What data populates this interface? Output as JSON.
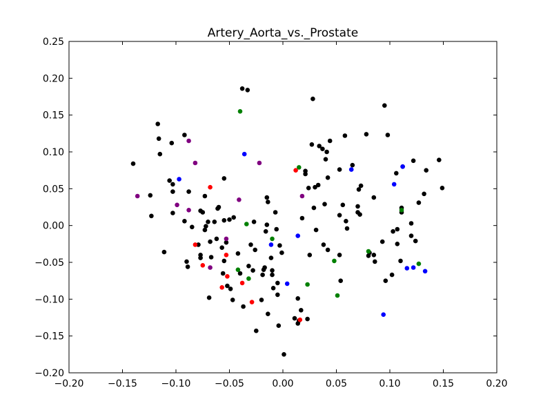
{
  "chart_data": {
    "type": "scatter",
    "title": "Artery_Aorta_vs._Prostate",
    "xlabel": "",
    "ylabel": "",
    "xlim": [
      -0.2,
      0.2
    ],
    "ylim": [
      -0.2,
      0.25
    ],
    "x_ticks": [
      -0.2,
      -0.15,
      -0.1,
      -0.05,
      0.0,
      0.05,
      0.1,
      0.15,
      0.2
    ],
    "y_ticks": [
      -0.2,
      -0.15,
      -0.1,
      -0.05,
      0.0,
      0.05,
      0.1,
      0.15,
      0.2,
      0.25
    ],
    "x_tick_labels": [
      "−0.20",
      "−0.15",
      "−0.10",
      "−0.05",
      "0.00",
      "0.05",
      "0.10",
      "0.15",
      "0.20"
    ],
    "y_tick_labels": [
      "−0.20",
      "−0.15",
      "−0.10",
      "−0.05",
      "0.00",
      "0.05",
      "0.10",
      "0.15",
      "0.20",
      "0.25"
    ],
    "grid": false,
    "legend": "none",
    "series": [
      {
        "color": "#000000",
        "points": [
          [
            -0.14,
            0.084
          ],
          [
            -0.124,
            0.041
          ],
          [
            -0.123,
            0.013
          ],
          [
            -0.117,
            0.138
          ],
          [
            -0.116,
            0.118
          ],
          [
            -0.115,
            0.097
          ],
          [
            -0.111,
            -0.036
          ],
          [
            -0.106,
            0.061
          ],
          [
            -0.104,
            0.112
          ],
          [
            -0.103,
            0.056
          ],
          [
            -0.103,
            0.046
          ],
          [
            -0.103,
            0.017
          ],
          [
            -0.092,
            0.123
          ],
          [
            -0.092,
            0.006
          ],
          [
            -0.09,
            -0.049
          ],
          [
            -0.089,
            -0.056
          ],
          [
            -0.088,
            0.046
          ],
          [
            -0.085,
            -0.002
          ],
          [
            -0.079,
            -0.026
          ],
          [
            -0.077,
            -0.04
          ],
          [
            -0.077,
            -0.044
          ],
          [
            -0.077,
            0.02
          ],
          [
            -0.075,
            0.018
          ],
          [
            -0.073,
            -0.006
          ],
          [
            -0.073,
            0.04
          ],
          [
            -0.072,
            -0.001
          ],
          [
            -0.07,
            0.005
          ],
          [
            -0.069,
            -0.098
          ],
          [
            -0.068,
            -0.022
          ],
          [
            -0.067,
            -0.043
          ],
          [
            -0.064,
            0.005
          ],
          [
            -0.062,
            -0.018
          ],
          [
            -0.061,
            0.023
          ],
          [
            -0.06,
            0.025
          ],
          [
            -0.057,
            -0.03
          ],
          [
            -0.056,
            -0.065
          ],
          [
            -0.055,
            0.007
          ],
          [
            -0.055,
            0.064
          ],
          [
            -0.055,
            -0.048
          ],
          [
            -0.053,
            -0.023
          ],
          [
            -0.052,
            -0.082
          ],
          [
            -0.05,
            0.008
          ],
          [
            -0.049,
            -0.086
          ],
          [
            -0.047,
            -0.101
          ],
          [
            -0.046,
            0.011
          ],
          [
            -0.042,
            -0.038
          ],
          [
            -0.04,
            -0.065
          ],
          [
            -0.038,
            0.186
          ],
          [
            -0.037,
            -0.11
          ],
          [
            -0.033,
            0.184
          ],
          [
            -0.032,
            -0.055
          ],
          [
            -0.03,
            -0.026
          ],
          [
            -0.028,
            -0.061
          ],
          [
            -0.027,
            0.005
          ],
          [
            -0.026,
            -0.033
          ],
          [
            -0.025,
            -0.143
          ],
          [
            -0.02,
            -0.101
          ],
          [
            -0.019,
            -0.067
          ],
          [
            -0.018,
            -0.06
          ],
          [
            -0.017,
            -0.057
          ],
          [
            -0.016,
            -0.008
          ],
          [
            -0.015,
            0.001
          ],
          [
            -0.015,
            0.038
          ],
          [
            -0.014,
            -0.12
          ],
          [
            -0.014,
            0.032
          ],
          [
            -0.011,
            -0.044
          ],
          [
            -0.01,
            -0.067
          ],
          [
            -0.01,
            -0.061
          ],
          [
            -0.009,
            -0.085
          ],
          [
            -0.007,
            0.018
          ],
          [
            -0.006,
            -0.005
          ],
          [
            -0.005,
            -0.078
          ],
          [
            -0.005,
            -0.094
          ],
          [
            -0.004,
            -0.136
          ],
          [
            -0.003,
            -0.027
          ],
          [
            -0.001,
            -0.037
          ],
          [
            0.001,
            -0.175
          ],
          [
            0.011,
            -0.126
          ],
          [
            0.014,
            -0.099
          ],
          [
            0.014,
            -0.133
          ],
          [
            0.015,
            -0.129
          ],
          [
            0.017,
            -0.115
          ],
          [
            0.018,
            0.01
          ],
          [
            0.021,
            0.07
          ],
          [
            0.021,
            0.074
          ],
          [
            0.023,
            -0.127
          ],
          [
            0.024,
            0.051
          ],
          [
            0.025,
            -0.04
          ],
          [
            0.027,
            0.11
          ],
          [
            0.028,
            0.172
          ],
          [
            0.029,
            0.024
          ],
          [
            0.03,
            0.052
          ],
          [
            0.031,
            -0.006
          ],
          [
            0.033,
            0.055
          ],
          [
            0.034,
            0.108
          ],
          [
            0.037,
            0.104
          ],
          [
            0.038,
            -0.026
          ],
          [
            0.039,
            0.029
          ],
          [
            0.04,
            0.09
          ],
          [
            0.041,
            0.1
          ],
          [
            0.042,
            0.065
          ],
          [
            0.042,
            -0.033
          ],
          [
            0.044,
            0.115
          ],
          [
            0.053,
            0.076
          ],
          [
            0.053,
            0.014
          ],
          [
            0.053,
            -0.04
          ],
          [
            0.054,
            -0.075
          ],
          [
            0.056,
            0.028
          ],
          [
            0.058,
            0.122
          ],
          [
            0.059,
            0.006
          ],
          [
            0.06,
            -0.004
          ],
          [
            0.065,
            0.082
          ],
          [
            0.07,
            0.026
          ],
          [
            0.07,
            0.018
          ],
          [
            0.071,
            0.049
          ],
          [
            0.072,
            0.015
          ],
          [
            0.073,
            0.054
          ],
          [
            0.078,
            0.124
          ],
          [
            0.08,
            -0.041
          ],
          [
            0.081,
            -0.037
          ],
          [
            0.085,
            0.038
          ],
          [
            0.085,
            -0.04
          ],
          [
            0.086,
            -0.049
          ],
          [
            0.093,
            -0.022
          ],
          [
            0.095,
            0.163
          ],
          [
            0.096,
            -0.075
          ],
          [
            0.098,
            0.123
          ],
          [
            0.102,
            -0.067
          ],
          [
            0.103,
            -0.008
          ],
          [
            0.106,
            0.071
          ],
          [
            0.107,
            -0.005
          ],
          [
            0.107,
            -0.025
          ],
          [
            0.11,
            -0.048
          ],
          [
            0.111,
            0.024
          ],
          [
            0.111,
            0.018
          ],
          [
            0.112,
            0.08
          ],
          [
            0.12,
            -0.014
          ],
          [
            0.12,
            0.003
          ],
          [
            0.122,
            0.088
          ],
          [
            0.124,
            -0.021
          ],
          [
            0.127,
            0.031
          ],
          [
            0.132,
            0.043
          ],
          [
            0.134,
            0.075
          ],
          [
            0.146,
            0.089
          ],
          [
            0.149,
            0.051
          ]
        ]
      },
      {
        "color": "#0000ff",
        "points": [
          [
            -0.097,
            0.063
          ],
          [
            -0.036,
            0.097
          ],
          [
            -0.011,
            -0.026
          ],
          [
            0.004,
            -0.079
          ],
          [
            0.014,
            -0.014
          ],
          [
            0.064,
            0.076
          ],
          [
            0.094,
            -0.121
          ],
          [
            0.104,
            0.056
          ],
          [
            0.112,
            0.08
          ],
          [
            0.116,
            -0.058
          ],
          [
            0.122,
            -0.057
          ],
          [
            0.133,
            -0.062
          ]
        ]
      },
      {
        "color": "#008000",
        "points": [
          [
            -0.04,
            0.155
          ],
          [
            -0.034,
            0.002
          ],
          [
            -0.032,
            -0.072
          ],
          [
            -0.042,
            -0.06
          ],
          [
            -0.01,
            -0.018
          ],
          [
            0.015,
            0.079
          ],
          [
            0.023,
            -0.08
          ],
          [
            0.048,
            -0.048
          ],
          [
            0.051,
            -0.095
          ],
          [
            0.08,
            -0.035
          ],
          [
            0.111,
            0.021
          ],
          [
            0.127,
            -0.052
          ]
        ]
      },
      {
        "color": "#ff0000",
        "points": [
          [
            -0.082,
            -0.026
          ],
          [
            -0.075,
            -0.054
          ],
          [
            -0.068,
            0.052
          ],
          [
            -0.057,
            -0.084
          ],
          [
            -0.053,
            -0.04
          ],
          [
            -0.052,
            -0.069
          ],
          [
            -0.038,
            -0.078
          ],
          [
            -0.029,
            -0.104
          ],
          [
            0.012,
            0.075
          ],
          [
            0.016,
            -0.128
          ]
        ]
      },
      {
        "color": "#800080",
        "points": [
          [
            -0.136,
            0.04
          ],
          [
            -0.099,
            0.028
          ],
          [
            -0.088,
            0.115
          ],
          [
            -0.088,
            0.021
          ],
          [
            -0.082,
            0.085
          ],
          [
            -0.068,
            -0.057
          ],
          [
            -0.053,
            -0.018
          ],
          [
            -0.041,
            0.035
          ],
          [
            -0.022,
            0.085
          ],
          [
            0.018,
            0.04
          ]
        ]
      }
    ]
  }
}
